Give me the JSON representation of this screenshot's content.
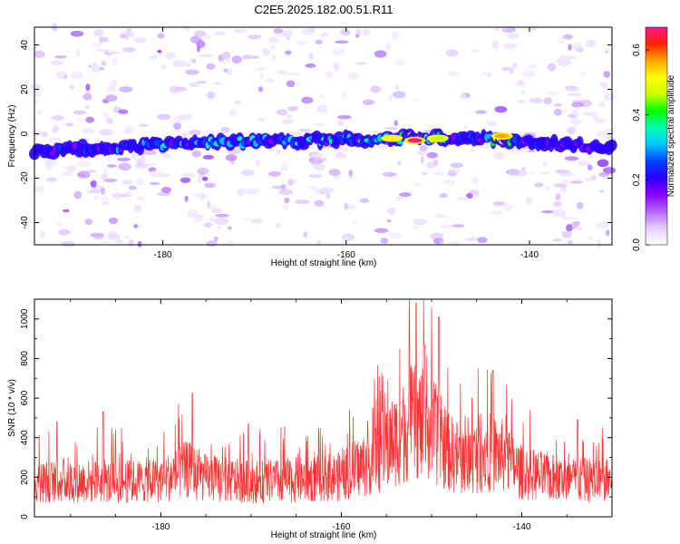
{
  "title": "C2E5.2025.182.00.51.R11",
  "chart_data": [
    {
      "type": "heatmap",
      "xlabel": "Height of straight line (km)",
      "ylabel": "Frequency (Hz)",
      "xlim": [
        -194,
        -131
      ],
      "ylim": [
        -50,
        48
      ],
      "xticks": [
        -180,
        -160,
        -140
      ],
      "yticks": [
        -40,
        -20,
        0,
        20,
        40
      ],
      "colorbar": {
        "label": "Normalized spectral amplitude",
        "range": [
          0,
          0.67
        ],
        "ticks": [
          0.0,
          0.2,
          0.4,
          0.6
        ],
        "colormap": [
          "#ffffff",
          "#e6ccff",
          "#b366ff",
          "#8a00ff",
          "#2a00ff",
          "#0044ff",
          "#00c8ff",
          "#00ffb0",
          "#00ff00",
          "#c8ff00",
          "#ffff00",
          "#ffa500",
          "#ff2200",
          "#ff1493"
        ]
      },
      "ridge": {
        "centerline": [
          {
            "x": -194,
            "y": -8
          },
          {
            "x": -185,
            "y": -6
          },
          {
            "x": -175,
            "y": -4
          },
          {
            "x": -165,
            "y": -3
          },
          {
            "x": -155,
            "y": -2
          },
          {
            "x": -150,
            "y": -2
          },
          {
            "x": -145,
            "y": -2
          },
          {
            "x": -140,
            "y": -4
          },
          {
            "x": -135,
            "y": -5
          },
          {
            "x": -131,
            "y": -6
          }
        ],
        "peak": {
          "x": -152.5,
          "y": -3,
          "amplitude": 0.67
        },
        "secondary_peaks": [
          {
            "x": -143,
            "y": -1,
            "amplitude": 0.55
          },
          {
            "x": -155,
            "y": -2,
            "amplitude": 0.5
          },
          {
            "x": -150,
            "y": -2,
            "amplitude": 0.45
          }
        ]
      }
    },
    {
      "type": "line",
      "xlabel": "Height of straight line (km)",
      "ylabel": "SNR (10 * v/v)",
      "xlim": [
        -194,
        -130
      ],
      "ylim": [
        0,
        1100
      ],
      "xticks": [
        -180,
        -160,
        -140
      ],
      "yticks": [
        0,
        200,
        400,
        600,
        800,
        1000
      ],
      "color": "#ff3333",
      "envelope": [
        {
          "x": -194,
          "y": 190
        },
        {
          "x": -190,
          "y": 195
        },
        {
          "x": -185,
          "y": 190
        },
        {
          "x": -180,
          "y": 200
        },
        {
          "x": -177,
          "y": 260
        },
        {
          "x": -175,
          "y": 210
        },
        {
          "x": -170,
          "y": 190
        },
        {
          "x": -165,
          "y": 200
        },
        {
          "x": -160,
          "y": 220
        },
        {
          "x": -157,
          "y": 300
        },
        {
          "x": -154,
          "y": 420
        },
        {
          "x": -152,
          "y": 520
        },
        {
          "x": -150,
          "y": 480
        },
        {
          "x": -148,
          "y": 350
        },
        {
          "x": -146,
          "y": 300
        },
        {
          "x": -144,
          "y": 360
        },
        {
          "x": -142,
          "y": 330
        },
        {
          "x": -140,
          "y": 240
        },
        {
          "x": -135,
          "y": 200
        },
        {
          "x": -130,
          "y": 200
        }
      ],
      "peaks": [
        {
          "x": -151.7,
          "y": 1080
        },
        {
          "x": -150.8,
          "y": 870
        },
        {
          "x": -149.2,
          "y": 1010
        },
        {
          "x": -156.5,
          "y": 550
        },
        {
          "x": -143.2,
          "y": 740
        },
        {
          "x": -145.5,
          "y": 600
        },
        {
          "x": -176.5,
          "y": 625
        },
        {
          "x": -170.3,
          "y": 470
        },
        {
          "x": -186.4,
          "y": 530
        },
        {
          "x": -133.8,
          "y": 490
        },
        {
          "x": -191.5,
          "y": 480
        }
      ]
    }
  ]
}
